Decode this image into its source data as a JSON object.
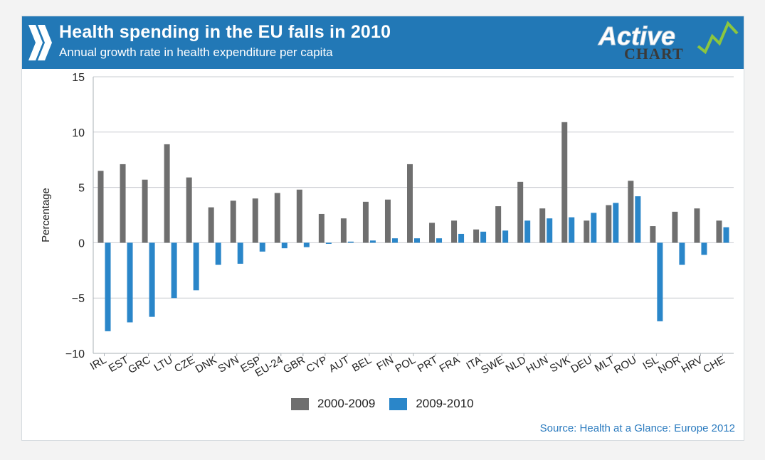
{
  "header": {
    "title": "Health spending in the EU falls in 2010",
    "subtitle": "Annual growth rate in health expenditure per capita",
    "logo_text_top": "Active",
    "logo_text_bottom": "CHART"
  },
  "colors": {
    "banner": "#2278b6",
    "series_2000_2009": "#6f6f6f",
    "series_2009_2010": "#2a86c9",
    "source_text": "#2b7bbf"
  },
  "chart_data": {
    "type": "bar",
    "ylabel": "Percentage",
    "ylim": [
      -10,
      15
    ],
    "yticks": [
      15,
      10,
      5,
      0,
      -5,
      -10
    ],
    "ytick_labels": [
      "15",
      "10",
      "5",
      "0",
      "−5",
      "−10"
    ],
    "grid": true,
    "legend_position": "bottom",
    "categories": [
      "IRL",
      "EST",
      "GRC",
      "LTU",
      "CZE",
      "DNK",
      "SVN",
      "ESP",
      "EU-24",
      "GBR",
      "CYP",
      "AUT",
      "BEL",
      "FIN",
      "POL",
      "PRT",
      "FRA",
      "ITA",
      "SWE",
      "NLD",
      "HUN",
      "SVK",
      "DEU",
      "MLT",
      "ROU",
      "ISL",
      "NOR",
      "HRV",
      "CHE"
    ],
    "series": [
      {
        "name": "2000-2009",
        "values": [
          6.5,
          7.1,
          5.7,
          8.9,
          5.9,
          3.2,
          3.8,
          4.0,
          4.5,
          4.8,
          2.6,
          2.2,
          3.7,
          3.9,
          7.1,
          1.8,
          2.0,
          1.2,
          3.3,
          5.5,
          3.1,
          10.9,
          2.0,
          3.4,
          5.6,
          1.5,
          2.8,
          3.1,
          2.0
        ]
      },
      {
        "name": "2009-2010",
        "values": [
          -8.0,
          -7.2,
          -6.7,
          -5.0,
          -4.3,
          -2.0,
          -1.9,
          -0.8,
          -0.5,
          -0.4,
          -0.1,
          0.1,
          0.2,
          0.4,
          0.4,
          0.4,
          0.8,
          1.0,
          1.1,
          2.0,
          2.2,
          2.3,
          2.7,
          3.6,
          4.2,
          -7.1,
          -2.0,
          -1.1,
          1.4
        ]
      }
    ]
  },
  "source": "Source: Health at a Glance: Europe 2012"
}
